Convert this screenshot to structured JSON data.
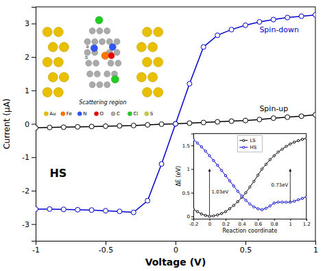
{
  "chart_data": [
    {
      "type": "line",
      "xlabel": "Voltage (V)",
      "ylabel": "Current (μA)",
      "x": [
        -1.0,
        -0.9,
        -0.8,
        -0.7,
        -0.6,
        -0.5,
        -0.4,
        -0.3,
        -0.2,
        -0.1,
        0.0,
        0.1,
        0.2,
        0.3,
        0.4,
        0.5,
        0.6,
        0.7,
        0.8,
        0.9,
        1.0
      ],
      "series": [
        {
          "color": "#000000",
          "values": [
            -0.12,
            -0.11,
            -0.1,
            -0.09,
            -0.08,
            -0.07,
            -0.06,
            -0.05,
            -0.03,
            -0.01,
            0.0,
            0.02,
            0.04,
            0.06,
            0.08,
            0.1,
            0.13,
            0.17,
            0.2,
            0.23,
            0.27
          ]
        },
        {
          "color": "#0000cc",
          "values": [
            -2.55,
            -2.55,
            -2.56,
            -2.57,
            -2.58,
            -2.6,
            -2.62,
            -2.65,
            -2.3,
            -1.2,
            0.0,
            1.2,
            2.3,
            2.65,
            2.82,
            2.95,
            3.05,
            3.12,
            3.18,
            3.22,
            3.26
          ]
        }
      ],
      "xlim": [
        -1.0,
        1.0
      ],
      "ylim": [
        -3.5,
        3.5
      ],
      "xticks": [
        -1,
        -0.5,
        0,
        0.5,
        1
      ],
      "yticks": [
        -3,
        -2,
        -1,
        0,
        1,
        2,
        3
      ],
      "marker": "circle",
      "annotations": [
        {
          "text": "Spin-down",
          "x": 0.6,
          "y": 2.9,
          "color": "#0000cc"
        },
        {
          "text": "Spin-up",
          "x": 0.6,
          "y": 0.38,
          "color": "#000000"
        },
        {
          "text": "HS",
          "x": -0.9,
          "y": -1.6,
          "color": "#000000"
        }
      ]
    },
    {
      "type": "line",
      "xlabel": "Reaction coordinate",
      "ylabel": "ΔE (eV)",
      "x": [
        -0.2,
        -0.15,
        -0.1,
        -0.05,
        0.0,
        0.05,
        0.1,
        0.15,
        0.2,
        0.25,
        0.3,
        0.35,
        0.4,
        0.45,
        0.5,
        0.55,
        0.6,
        0.65,
        0.7,
        0.75,
        0.8,
        0.85,
        0.9,
        0.95,
        1.0,
        1.05,
        1.1,
        1.15,
        1.2
      ],
      "series": [
        {
          "name": "LS",
          "color": "#000000",
          "values": [
            0.15,
            0.1,
            0.05,
            0.02,
            0.0,
            0.01,
            0.03,
            0.06,
            0.1,
            0.16,
            0.23,
            0.31,
            0.4,
            0.5,
            0.62,
            0.74,
            0.87,
            1.0,
            1.1,
            1.2,
            1.28,
            1.36,
            1.42,
            1.48,
            1.53,
            1.57,
            1.6,
            1.63,
            1.65
          ]
        },
        {
          "name": "HS",
          "color": "#0000cc",
          "values": [
            1.62,
            1.55,
            1.47,
            1.38,
            1.28,
            1.18,
            1.08,
            0.97,
            0.86,
            0.75,
            0.64,
            0.53,
            0.43,
            0.34,
            0.26,
            0.2,
            0.16,
            0.14,
            0.17,
            0.22,
            0.28,
            0.3,
            0.3,
            0.3,
            0.3,
            0.32,
            0.35,
            0.38,
            0.41
          ]
        }
      ],
      "xlim": [
        -0.2,
        1.2
      ],
      "ylim": [
        -0.05,
        1.75
      ],
      "xticks": [
        -0.2,
        0,
        0.2,
        0.4,
        0.6,
        0.8,
        1,
        1.2
      ],
      "yticks": [
        0,
        0.5,
        1,
        1.5
      ],
      "legend": "upper center",
      "marker": "circle",
      "annotations": [
        {
          "text": "1.03eV",
          "x": 0.0,
          "from": 0.02,
          "to": 1.0
        },
        {
          "text": "0.73eV",
          "x": 1.0,
          "from": 0.3,
          "to": 1.0
        }
      ]
    },
    {
      "type": "diagram",
      "title": "Scattering region",
      "annotations": [
        "a",
        "b"
      ],
      "categories": [
        "Au",
        "Fe",
        "N",
        "O",
        "C",
        "Cl",
        "S"
      ],
      "colors": [
        "#E8C000",
        "#FF7700",
        "#3355FF",
        "#EE0000",
        "#AAAAAA",
        "#22CC22",
        "#CCCC44"
      ]
    }
  ]
}
